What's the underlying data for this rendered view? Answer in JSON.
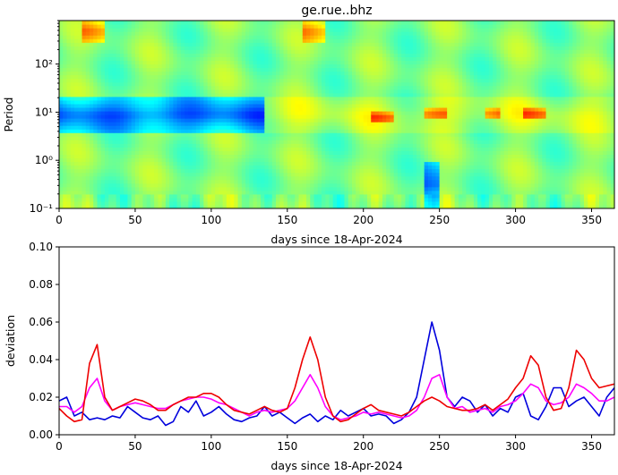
{
  "figure": {
    "title": "ge.rue..bhz"
  },
  "chart_data": [
    {
      "type": "heatmap",
      "title": "ge.rue..bhz",
      "xlabel": "days since 18-Apr-2024",
      "ylabel": "Period",
      "xlim": [
        0,
        365
      ],
      "ylim": [
        0.1,
        800
      ],
      "yscale": "log",
      "xticks": [
        0,
        50,
        100,
        150,
        200,
        250,
        300,
        350
      ],
      "xtick_labels": [
        "0",
        "50",
        "100",
        "150",
        "200",
        "250",
        "300",
        "350"
      ],
      "yticks": [
        0.1,
        1,
        10,
        100
      ],
      "ytick_labels": [
        "10⁻¹",
        "10⁰",
        "10¹",
        "10²"
      ],
      "colormap": "jet",
      "features": [
        {
          "x": [
            0,
            135
          ],
          "period": [
            4,
            20
          ],
          "level": "low"
        },
        {
          "x": [
            135,
            365
          ],
          "period": [
            4,
            20
          ],
          "level": "moderate"
        },
        {
          "x": [
            240,
            250
          ],
          "period": [
            0.1,
            1
          ],
          "level": "low"
        },
        {
          "x": [
            15,
            30
          ],
          "period": [
            300,
            800
          ],
          "level": "high"
        },
        {
          "x": [
            160,
            175
          ],
          "period": [
            300,
            800
          ],
          "level": "high"
        },
        {
          "x": [
            305,
            320
          ],
          "period": [
            7,
            12
          ],
          "level": "high"
        },
        {
          "x": [
            280,
            290
          ],
          "period": [
            7,
            12
          ],
          "level": "high"
        },
        {
          "x": [
            240,
            255
          ],
          "period": [
            7,
            12
          ],
          "level": "high"
        },
        {
          "x": [
            205,
            220
          ],
          "period": [
            6,
            10
          ],
          "level": "high"
        }
      ]
    },
    {
      "type": "line",
      "xlabel": "days since 18-Apr-2024",
      "ylabel": "deviation",
      "xlim": [
        0,
        365
      ],
      "ylim": [
        0,
        0.1
      ],
      "xticks": [
        0,
        50,
        100,
        150,
        200,
        250,
        300,
        350
      ],
      "xtick_labels": [
        "0",
        "50",
        "100",
        "150",
        "200",
        "250",
        "300",
        "350"
      ],
      "yticks": [
        0,
        0.02,
        0.04,
        0.06,
        0.08,
        0.1
      ],
      "ytick_labels": [
        "0.00",
        "0.02",
        "0.04",
        "0.06",
        "0.08",
        "0.10"
      ],
      "series": [
        {
          "color": "#0000dd",
          "x": [
            0,
            5,
            10,
            15,
            20,
            25,
            30,
            35,
            40,
            45,
            50,
            55,
            60,
            65,
            70,
            75,
            80,
            85,
            90,
            95,
            100,
            105,
            110,
            115,
            120,
            125,
            130,
            135,
            140,
            145,
            150,
            155,
            160,
            165,
            170,
            175,
            180,
            185,
            190,
            195,
            200,
            205,
            210,
            215,
            220,
            225,
            230,
            235,
            240,
            245,
            250,
            255,
            260,
            265,
            270,
            275,
            280,
            285,
            290,
            295,
            300,
            305,
            310,
            315,
            320,
            325,
            330,
            335,
            340,
            345,
            350,
            355,
            360,
            365
          ],
          "y": [
            0.018,
            0.02,
            0.01,
            0.012,
            0.008,
            0.009,
            0.008,
            0.01,
            0.009,
            0.015,
            0.012,
            0.009,
            0.008,
            0.01,
            0.005,
            0.007,
            0.015,
            0.012,
            0.018,
            0.01,
            0.012,
            0.015,
            0.011,
            0.008,
            0.007,
            0.009,
            0.01,
            0.015,
            0.01,
            0.012,
            0.009,
            0.006,
            0.009,
            0.011,
            0.007,
            0.01,
            0.008,
            0.013,
            0.01,
            0.012,
            0.014,
            0.01,
            0.011,
            0.01,
            0.006,
            0.008,
            0.012,
            0.02,
            0.04,
            0.06,
            0.045,
            0.02,
            0.015,
            0.02,
            0.018,
            0.012,
            0.016,
            0.01,
            0.014,
            0.012,
            0.02,
            0.022,
            0.01,
            0.008,
            0.015,
            0.025,
            0.025,
            0.015,
            0.018,
            0.02,
            0.015,
            0.01,
            0.02,
            0.025
          ]
        },
        {
          "color": "#ff00ff",
          "x": [
            0,
            5,
            10,
            15,
            20,
            25,
            30,
            35,
            40,
            45,
            50,
            55,
            60,
            65,
            70,
            75,
            80,
            85,
            90,
            95,
            100,
            105,
            110,
            115,
            120,
            125,
            130,
            135,
            140,
            145,
            150,
            155,
            160,
            165,
            170,
            175,
            180,
            185,
            190,
            195,
            200,
            205,
            210,
            215,
            220,
            225,
            230,
            235,
            240,
            245,
            250,
            255,
            260,
            265,
            270,
            275,
            280,
            285,
            290,
            295,
            300,
            305,
            310,
            315,
            320,
            325,
            330,
            335,
            340,
            345,
            350,
            355,
            360,
            365
          ],
          "y": [
            0.015,
            0.015,
            0.012,
            0.015,
            0.025,
            0.03,
            0.018,
            0.013,
            0.015,
            0.016,
            0.017,
            0.016,
            0.015,
            0.014,
            0.014,
            0.016,
            0.018,
            0.019,
            0.02,
            0.02,
            0.019,
            0.017,
            0.016,
            0.014,
            0.012,
            0.01,
            0.012,
            0.013,
            0.012,
            0.013,
            0.014,
            0.018,
            0.025,
            0.032,
            0.025,
            0.015,
            0.01,
            0.008,
            0.009,
            0.01,
            0.012,
            0.011,
            0.012,
            0.011,
            0.01,
            0.009,
            0.01,
            0.013,
            0.02,
            0.03,
            0.032,
            0.02,
            0.014,
            0.015,
            0.012,
            0.013,
            0.014,
            0.012,
            0.015,
            0.016,
            0.018,
            0.022,
            0.027,
            0.025,
            0.018,
            0.016,
            0.017,
            0.02,
            0.027,
            0.025,
            0.022,
            0.018,
            0.018,
            0.02
          ]
        },
        {
          "color": "#ee0000",
          "x": [
            0,
            5,
            10,
            15,
            20,
            25,
            30,
            35,
            40,
            45,
            50,
            55,
            60,
            65,
            70,
            75,
            80,
            85,
            90,
            95,
            100,
            105,
            110,
            115,
            120,
            125,
            130,
            135,
            140,
            145,
            150,
            155,
            160,
            165,
            170,
            175,
            180,
            185,
            190,
            195,
            200,
            205,
            210,
            215,
            220,
            225,
            230,
            235,
            240,
            245,
            250,
            255,
            260,
            265,
            270,
            275,
            280,
            285,
            290,
            295,
            300,
            305,
            310,
            315,
            320,
            325,
            330,
            335,
            340,
            345,
            350,
            355,
            360,
            365
          ],
          "y": [
            0.014,
            0.01,
            0.007,
            0.008,
            0.038,
            0.048,
            0.02,
            0.013,
            0.015,
            0.017,
            0.019,
            0.018,
            0.016,
            0.013,
            0.013,
            0.016,
            0.018,
            0.02,
            0.02,
            0.022,
            0.022,
            0.02,
            0.016,
            0.013,
            0.012,
            0.011,
            0.013,
            0.015,
            0.013,
            0.012,
            0.014,
            0.025,
            0.04,
            0.052,
            0.04,
            0.02,
            0.01,
            0.007,
            0.008,
            0.011,
            0.014,
            0.016,
            0.013,
            0.012,
            0.011,
            0.01,
            0.012,
            0.015,
            0.018,
            0.02,
            0.018,
            0.015,
            0.014,
            0.013,
            0.013,
            0.014,
            0.016,
            0.013,
            0.016,
            0.019,
            0.025,
            0.03,
            0.042,
            0.037,
            0.02,
            0.013,
            0.014,
            0.025,
            0.045,
            0.04,
            0.03,
            0.025,
            0.026,
            0.027
          ]
        }
      ]
    }
  ]
}
